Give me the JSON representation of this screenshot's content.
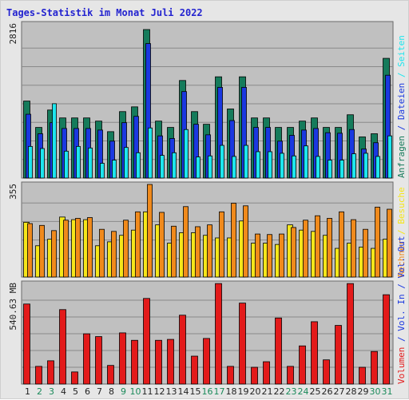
{
  "colors": {
    "anfragen": "#157b5b",
    "dateien": "#1a38e0",
    "seiten": "#1de6ee",
    "besuche": "#f5e61a",
    "rechner": "#f08a1c",
    "volumen": "#e31a1a",
    "weekend_day": "#1a8a5a",
    "plot_bg": "#c0c0c0"
  },
  "chart_data": {
    "title": "Tages-Statistik im Monat Juli 2022",
    "days": [
      "1",
      "2",
      "3",
      "4",
      "5",
      "6",
      "7",
      "8",
      "9",
      "10",
      "11",
      "12",
      "13",
      "14",
      "15",
      "16",
      "17",
      "18",
      "19",
      "20",
      "21",
      "22",
      "23",
      "24",
      "25",
      "26",
      "27",
      "28",
      "29",
      "30",
      "31"
    ],
    "weekend_days": [
      "2",
      "3",
      "9",
      "10",
      "16",
      "17",
      "23",
      "24",
      "30",
      "31"
    ],
    "panels": [
      {
        "type": "bar",
        "ymax_label": "2816",
        "ylim": [
          0,
          2816
        ],
        "series": [
          {
            "name": "Anfragen",
            "color_key": "anfragen",
            "values": [
              1460,
              960,
              1290,
              1140,
              1140,
              1140,
              1080,
              880,
              1260,
              1350,
              2816,
              1080,
              960,
              1850,
              1260,
              1020,
              1920,
              1310,
              1920,
              1140,
              1140,
              960,
              960,
              1080,
              1140,
              960,
              960,
              1200,
              780,
              840,
              2270
            ]
          },
          {
            "name": "Dateien",
            "color_key": "dateien",
            "values": [
              1210,
              840,
              1050,
              940,
              940,
              940,
              910,
              700,
              1050,
              1170,
              2550,
              800,
              750,
              1640,
              1020,
              820,
              1720,
              1090,
              1720,
              960,
              960,
              700,
              810,
              910,
              940,
              860,
              850,
              920,
              550,
              670,
              1950
            ]
          },
          {
            "name": "Seiten",
            "color_key": "seiten",
            "values": [
              600,
              560,
              1410,
              510,
              600,
              570,
              280,
              340,
              580,
              480,
              950,
              430,
              480,
              920,
              400,
              420,
              620,
              410,
              620,
              500,
              500,
              470,
              420,
              610,
              410,
              340,
              340,
              460,
              470,
              410,
              800
            ]
          }
        ]
      },
      {
        "type": "bar",
        "ymax_label": "355",
        "ylim": [
          0,
          355
        ],
        "series": [
          {
            "name": "Besuche",
            "color_key": "besuche",
            "values": [
              210,
              120,
              145,
              230,
              220,
              220,
              120,
              135,
              160,
              180,
              250,
              200,
              130,
              170,
              170,
              160,
              150,
              150,
              215,
              130,
              130,
              125,
              200,
              180,
              175,
              160,
              110,
              130,
              115,
              110,
              145
            ]
          },
          {
            "name": "Rechner",
            "color_key": "rechner",
            "values": [
              205,
              198,
              178,
              218,
              225,
              228,
              183,
              175,
              218,
              250,
              355,
              248,
              195,
              270,
              193,
              200,
              250,
              283,
              273,
              165,
              163,
              165,
              190,
              218,
              235,
              225,
              250,
              220,
              183,
              268,
              260
            ]
          }
        ]
      },
      {
        "type": "bar",
        "ymax_label": "540.63 MB",
        "ylim": [
          0,
          540.63
        ],
        "series": [
          {
            "name": "Volumen",
            "color_key": "volumen",
            "values": [
              430,
              95,
              125,
              400,
              65,
              270,
              255,
              100,
              275,
              235,
              460,
              235,
              240,
              370,
              150,
              245,
              540,
              95,
              435,
              90,
              120,
              355,
              95,
              205,
              335,
              130,
              315,
              540,
              90,
              175,
              480
            ]
          }
        ]
      }
    ],
    "right_labels": {
      "panel1": [
        {
          "text": "Anfragen",
          "color_key": "anfragen"
        },
        {
          "text": " / ",
          "color_key": "dateien"
        },
        {
          "text": "Dateien",
          "color_key": "dateien"
        },
        {
          "text": " / ",
          "color_key": "seiten"
        },
        {
          "text": "Seiten",
          "color_key": "seiten"
        }
      ],
      "panel2": [
        {
          "text": "Rechner",
          "color_key": "rechner"
        },
        {
          "text": " / ",
          "color_key": "besuche"
        },
        {
          "text": "Besuche",
          "color_key": "besuche"
        }
      ],
      "panel3": [
        {
          "text": "Volumen",
          "color_key": "volumen"
        },
        {
          "text": " / ",
          "color_key": "dateien"
        },
        {
          "text": "Vol. In",
          "color_key": "dateien"
        },
        {
          "text": " / ",
          "color_key": "dateien"
        },
        {
          "text": "Vol. Out",
          "color_key": "dateien"
        }
      ]
    }
  }
}
